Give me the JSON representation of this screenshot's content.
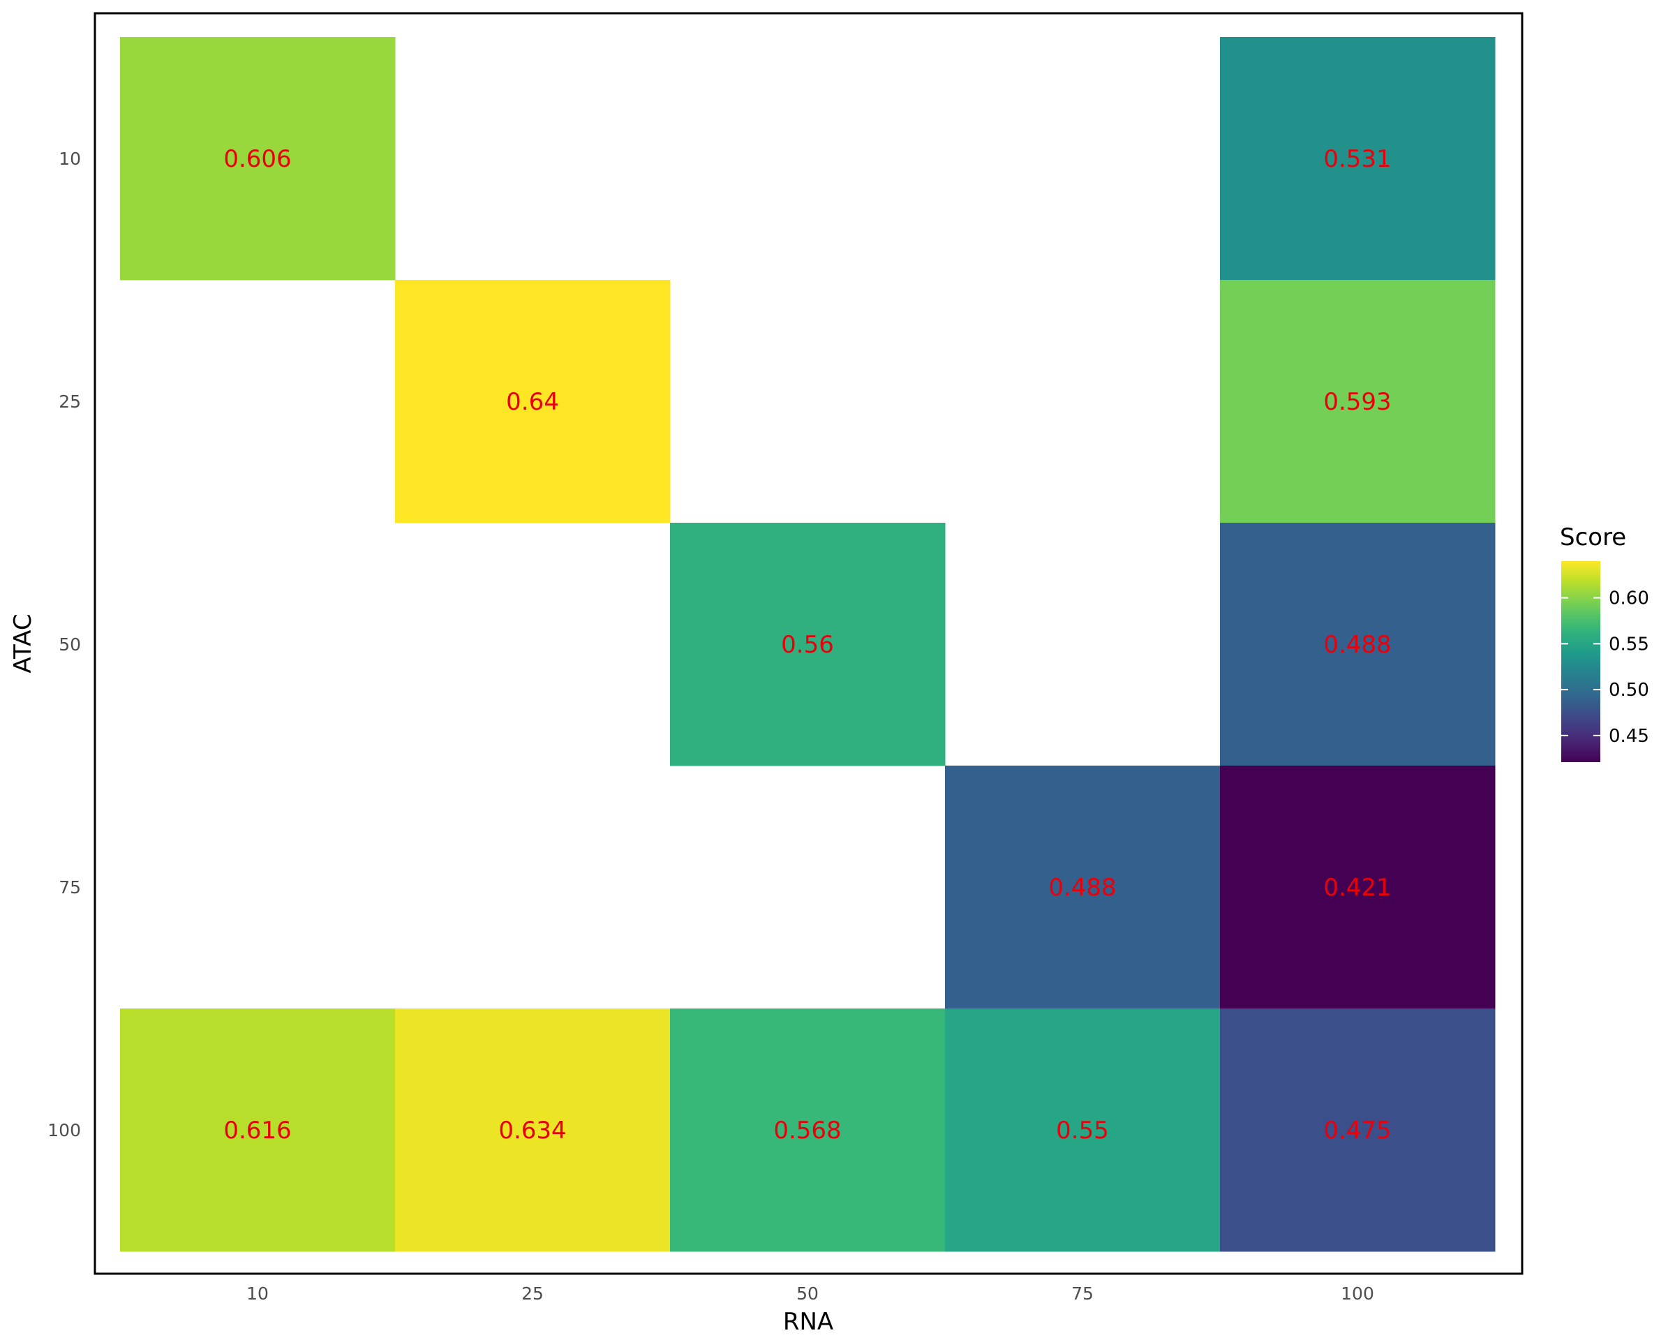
{
  "chart_data": {
    "type": "heatmap",
    "xlabel": "RNA",
    "ylabel": "ATAC",
    "x_categories": [
      "10",
      "25",
      "50",
      "75",
      "100"
    ],
    "y_categories": [
      "10",
      "25",
      "50",
      "75",
      "100"
    ],
    "cells": [
      {
        "x": "10",
        "y": "10",
        "value": 0.606,
        "label": "0.606"
      },
      {
        "x": "100",
        "y": "10",
        "value": 0.531,
        "label": "0.531"
      },
      {
        "x": "25",
        "y": "25",
        "value": 0.64,
        "label": "0.64"
      },
      {
        "x": "100",
        "y": "25",
        "value": 0.593,
        "label": "0.593"
      },
      {
        "x": "50",
        "y": "50",
        "value": 0.56,
        "label": "0.56"
      },
      {
        "x": "100",
        "y": "50",
        "value": 0.488,
        "label": "0.488"
      },
      {
        "x": "75",
        "y": "75",
        "value": 0.488,
        "label": "0.488"
      },
      {
        "x": "100",
        "y": "75",
        "value": 0.421,
        "label": "0.421"
      },
      {
        "x": "10",
        "y": "100",
        "value": 0.616,
        "label": "0.616"
      },
      {
        "x": "25",
        "y": "100",
        "value": 0.634,
        "label": "0.634"
      },
      {
        "x": "50",
        "y": "100",
        "value": 0.568,
        "label": "0.568"
      },
      {
        "x": "75",
        "y": "100",
        "value": 0.55,
        "label": "0.55"
      },
      {
        "x": "100",
        "y": "100",
        "value": 0.475,
        "label": "0.475"
      }
    ],
    "legend": {
      "title": "Score",
      "position": "right",
      "ticks": [
        {
          "value": 0.6,
          "label": "0.60"
        },
        {
          "value": 0.55,
          "label": "0.55"
        },
        {
          "value": 0.5,
          "label": "0.50"
        },
        {
          "value": 0.45,
          "label": "0.45"
        }
      ],
      "range": [
        0.421,
        0.64
      ]
    },
    "colorscale": "viridis",
    "label_color": "#e8000b",
    "grid": false,
    "panel_border": true
  }
}
